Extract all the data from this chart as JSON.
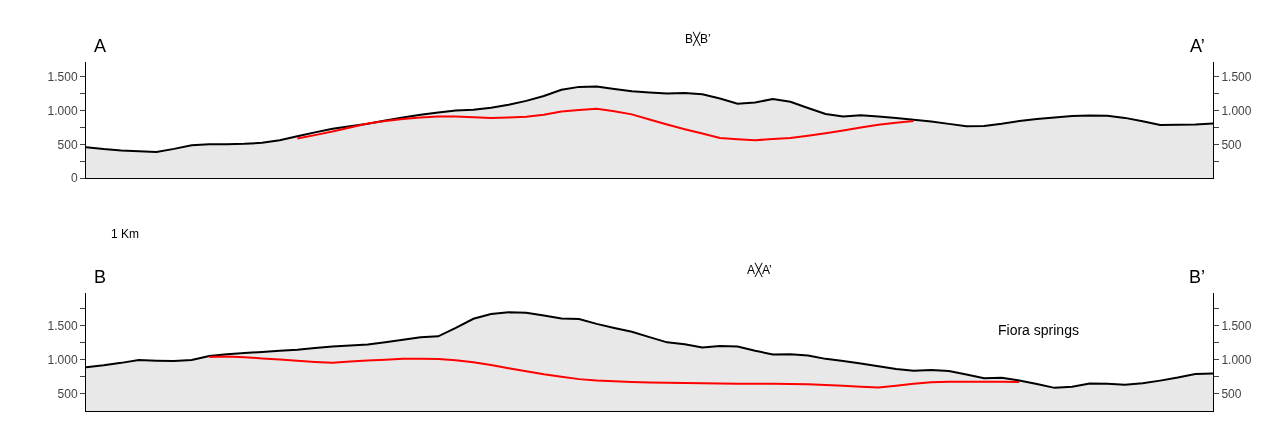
{
  "chart_data": [
    {
      "type": "area",
      "annotations": [
        "A",
        "A’",
        "B╳B’"
      ],
      "categories": [
        null,
        null,
        null,
        null,
        null,
        null,
        null,
        null,
        null,
        null,
        null,
        null,
        null,
        null,
        null,
        null,
        null,
        null,
        null,
        null,
        null,
        null,
        null,
        null,
        null,
        null,
        null,
        null,
        null,
        null,
        null,
        null,
        null,
        null,
        null,
        null,
        null,
        null,
        null,
        null,
        null,
        null,
        null,
        null,
        null,
        null,
        null,
        null,
        null,
        null,
        null,
        null,
        null,
        null,
        null,
        null,
        null,
        null,
        null,
        null,
        null,
        null,
        null,
        null,
        null
      ],
      "ylim": [
        0,
        1720
      ],
      "yticks": [
        0,
        {
          "value": 250,
          "label": null
        },
        500,
        {
          "value": 750,
          "label": null
        },
        {
          "value": 1000,
          "label": "1.000"
        },
        {
          "value": 1250,
          "label": null
        },
        {
          "value": 1500,
          "label": "1.500"
        }
      ],
      "y2lim": [
        0,
        1720
      ],
      "y2ticks": [
        {
          "value": 250,
          "label": null
        },
        500,
        {
          "value": 750,
          "label": null
        },
        {
          "value": 1000,
          "label": "1.000"
        },
        {
          "value": 1250,
          "label": null
        },
        {
          "value": 1500,
          "label": "1.500"
        }
      ],
      "tick_labels": "y",
      "series": [
        {
          "color": "#000000",
          "values": [
            458,
            429,
            409,
            396,
            387,
            432,
            486,
            500,
            500,
            507,
            522,
            561,
            619,
            677,
            732,
            767,
            805,
            853,
            897,
            938,
            973,
            1001,
            1014,
            1044,
            1087,
            1144,
            1216,
            1310,
            1352,
            1358,
            1321,
            1289,
            1269,
            1253,
            1262,
            1241,
            1180,
            1102,
            1121,
            1172,
            1131,
            1039,
            951,
            914,
            932,
            913,
            889,
            866,
            838,
            803,
            768,
            773,
            806,
            845,
            875,
            898,
            919,
            928,
            924,
            892,
            842,
            786,
            789,
            795,
            809
          ]
        },
        {
          "type": "line",
          "color": "#ff0000",
          "values": [
            null,
            null,
            null,
            null,
            null,
            null,
            null,
            null,
            null,
            null,
            null,
            null,
            585,
            636,
            689,
            749,
            809,
            845,
            876,
            899,
            911,
            911,
            900,
            890,
            897,
            909,
            937,
            988,
            1010,
            1026,
            991,
            944,
            867,
            794,
            724,
            660,
            595,
            576,
            562,
            577,
            592,
            626,
            665,
            705,
            748,
            790,
            821,
            846,
            null,
            null,
            null,
            null,
            null,
            null,
            null,
            null,
            null,
            null,
            null,
            null,
            null,
            null,
            null,
            null,
            null
          ]
        }
      ]
    },
    {
      "type": "area",
      "annotations": [
        "1 Km",
        "B",
        "B’",
        "A╳A’",
        "Fiora springs"
      ],
      "categories": [
        null,
        null,
        null,
        null,
        null,
        null,
        null,
        null,
        null,
        null,
        null,
        null,
        null,
        null,
        null,
        null,
        null,
        null,
        null,
        null,
        null,
        null,
        null,
        null,
        null,
        null,
        null,
        null,
        null,
        null,
        null,
        null,
        null,
        null,
        null,
        null,
        null,
        null,
        null,
        null,
        null,
        null,
        null,
        null,
        null,
        null,
        null,
        null,
        null,
        null,
        null,
        null,
        null,
        null,
        null,
        null,
        null,
        null,
        null,
        null,
        null,
        null,
        null,
        null,
        null
      ],
      "ylim": [
        240,
        1980
      ],
      "yticks": [
        500,
        {
          "value": 750,
          "label": null
        },
        {
          "value": 1000,
          "label": "1.000"
        },
        {
          "value": 1250,
          "label": null
        },
        {
          "value": 1500,
          "label": "1.500"
        },
        {
          "value": 1750,
          "label": null
        }
      ],
      "y2lim": [
        240,
        1980
      ],
      "y2ticks": [
        500,
        {
          "value": 750,
          "label": null
        },
        {
          "value": 1000,
          "label": "1.000"
        },
        {
          "value": 1250,
          "label": null
        },
        {
          "value": 1500,
          "label": "1.500"
        },
        {
          "value": 1750,
          "label": null
        }
      ],
      "tick_labels": "y",
      "series": [
        {
          "color": "#000000",
          "values": [
            887,
            916,
            951,
            993,
            984,
            977,
            992,
            1052,
            1077,
            1095,
            1112,
            1128,
            1144,
            1169,
            1192,
            1206,
            1221,
            1254,
            1292,
            1329,
            1343,
            1467,
            1602,
            1672,
            1697,
            1691,
            1650,
            1606,
            1598,
            1526,
            1466,
            1409,
            1331,
            1254,
            1226,
            1177,
            1200,
            1193,
            1130,
            1076,
            1079,
            1061,
            1010,
            977,
            942,
            902,
            862,
            834,
            847,
            832,
            778,
            723,
            731,
            691,
            639,
            582,
            597,
            647,
            644,
            627,
            649,
            689,
            734,
            787,
            793
          ]
        },
        {
          "type": "line",
          "color": "#ff0000",
          "values": [
            null,
            null,
            null,
            null,
            null,
            null,
            null,
            1038,
            1046,
            1035,
            1017,
            999,
            981,
            965,
            954,
            970,
            985,
            998,
            1011,
            1010,
            1007,
            989,
            961,
            920,
            873,
            826,
            783,
            747,
            711,
            690,
            681,
            670,
            661,
            657,
            653,
            649,
            645,
            644,
            643,
            642,
            641,
            636,
            624,
            612,
            600,
            588,
            614,
            644,
            665,
            671,
            674,
            672,
            671,
            669,
            null,
            null,
            null,
            null,
            null,
            null,
            null,
            null,
            null,
            null,
            null
          ]
        }
      ]
    }
  ]
}
